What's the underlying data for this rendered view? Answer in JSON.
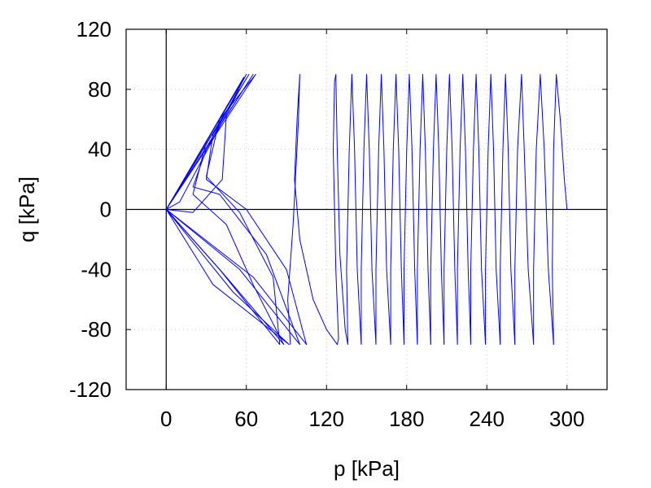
{
  "chart_data": {
    "type": "line",
    "title": "",
    "xlabel": "p [kPa]",
    "ylabel": "q [kPa]",
    "xlim": [
      -30,
      330
    ],
    "ylim": [
      -120,
      120
    ],
    "xticks": [
      0,
      60,
      120,
      180,
      240,
      300
    ],
    "yticks": [
      -120,
      -80,
      -40,
      0,
      40,
      80,
      120
    ],
    "grid": true,
    "zero_lines": true,
    "legend": "none",
    "series_color": "#0000ff",
    "series": [
      {
        "segments": [
          [
            [
              0,
              0
            ],
            [
              60,
              90
            ],
            [
              30,
              40
            ],
            [
              20,
              15
            ],
            [
              40,
              10
            ],
            [
              75,
              -30
            ],
            [
              100,
              -90
            ],
            [
              55,
              -40
            ],
            [
              0,
              0
            ]
          ],
          [
            [
              0,
              0
            ],
            [
              62,
              90
            ],
            [
              35,
              50
            ],
            [
              30,
              20
            ],
            [
              60,
              0
            ],
            [
              90,
              -40
            ],
            [
              105,
              -90
            ],
            [
              65,
              -45
            ],
            [
              0,
              0
            ]
          ],
          [
            [
              0,
              0
            ],
            [
              67,
              90
            ],
            [
              40,
              60
            ],
            [
              30,
              22
            ],
            [
              55,
              -2
            ],
            [
              80,
              -45
            ],
            [
              85,
              -90
            ],
            [
              40,
              -40
            ],
            [
              0,
              0
            ]
          ],
          [
            [
              0,
              0
            ],
            [
              65,
              90
            ],
            [
              45,
              62
            ],
            [
              42,
              20
            ],
            [
              20,
              -2
            ],
            [
              0,
              0
            ]
          ],
          [
            [
              0,
              0
            ],
            [
              58,
              88
            ],
            [
              30,
              45
            ],
            [
              20,
              10
            ],
            [
              45,
              -10
            ],
            [
              65,
              -50
            ],
            [
              88,
              -90
            ],
            [
              42,
              -42
            ],
            [
              0,
              0
            ]
          ],
          [
            [
              0,
              0
            ],
            [
              55,
              80
            ],
            [
              25,
              30
            ],
            [
              10,
              5
            ],
            [
              0,
              0
            ]
          ],
          [
            [
              0,
              0
            ],
            [
              35,
              -50
            ],
            [
              92,
              -90
            ],
            [
              50,
              -55
            ],
            [
              0,
              0
            ]
          ],
          [
            [
              93,
              -90
            ],
            [
              91,
              -60
            ],
            [
              95,
              -10
            ],
            [
              99,
              60
            ],
            [
              100,
              90
            ],
            [
              98,
              60
            ],
            [
              96,
              20
            ],
            [
              100,
              -20
            ],
            [
              110,
              -60
            ],
            [
              120,
              -80
            ],
            [
              128,
              -90
            ],
            [
              129,
              -86
            ],
            [
              127,
              -40
            ],
            [
              125,
              40
            ],
            [
              126,
              85
            ],
            [
              127,
              90
            ]
          ],
          [
            [
              127,
              90
            ],
            [
              128,
              40
            ],
            [
              130,
              -30
            ],
            [
              134,
              -80
            ],
            [
              136,
              -90
            ]
          ],
          [
            [
              136,
              -90
            ],
            [
              135,
              -40
            ],
            [
              137,
              40
            ],
            [
              139,
              90
            ],
            [
              141,
              40
            ],
            [
              143,
              -40
            ],
            [
              146,
              -90
            ]
          ],
          [
            [
              146,
              -90
            ],
            [
              146,
              -40
            ],
            [
              148,
              40
            ],
            [
              150,
              90
            ],
            [
              152,
              40
            ],
            [
              154,
              -40
            ],
            [
              157,
              -90
            ]
          ],
          [
            [
              157,
              -90
            ],
            [
              157,
              -40
            ],
            [
              159,
              40
            ],
            [
              161,
              90
            ],
            [
              163,
              40
            ],
            [
              165,
              -40
            ],
            [
              168,
              -90
            ]
          ],
          [
            [
              168,
              -90
            ],
            [
              168,
              -40
            ],
            [
              170,
              40
            ],
            [
              172,
              90
            ],
            [
              174,
              40
            ],
            [
              176,
              -40
            ],
            [
              178,
              -90
            ]
          ],
          [
            [
              178,
              -90
            ],
            [
              178,
              -40
            ],
            [
              180,
              40
            ],
            [
              182,
              90
            ],
            [
              184,
              40
            ],
            [
              186,
              -40
            ],
            [
              188,
              -90
            ]
          ],
          [
            [
              188,
              -90
            ],
            [
              188,
              -40
            ],
            [
              190,
              40
            ],
            [
              192,
              90
            ],
            [
              194,
              40
            ],
            [
              196,
              -40
            ],
            [
              198,
              -90
            ]
          ],
          [
            [
              198,
              -90
            ],
            [
              198,
              -40
            ],
            [
              200,
              40
            ],
            [
              202,
              90
            ],
            [
              204,
              40
            ],
            [
              206,
              -40
            ],
            [
              208,
              -90
            ]
          ],
          [
            [
              208,
              -90
            ],
            [
              208,
              -40
            ],
            [
              210,
              40
            ],
            [
              212,
              90
            ],
            [
              214,
              40
            ],
            [
              216,
              -40
            ],
            [
              218,
              -90
            ]
          ],
          [
            [
              218,
              -90
            ],
            [
              218,
              -40
            ],
            [
              220,
              40
            ],
            [
              222,
              90
            ],
            [
              224,
              40
            ],
            [
              226,
              -40
            ],
            [
              228,
              -90
            ]
          ],
          [
            [
              228,
              -90
            ],
            [
              228,
              -40
            ],
            [
              230,
              40
            ],
            [
              232,
              90
            ],
            [
              234,
              40
            ],
            [
              236,
              -40
            ],
            [
              239,
              -90
            ]
          ],
          [
            [
              239,
              -90
            ],
            [
              239,
              -40
            ],
            [
              241,
              40
            ],
            [
              243,
              90
            ],
            [
              245,
              40
            ],
            [
              247,
              -40
            ],
            [
              250,
              -90
            ]
          ],
          [
            [
              250,
              -90
            ],
            [
              250,
              -40
            ],
            [
              252,
              40
            ],
            [
              254,
              90
            ],
            [
              256,
              40
            ],
            [
              258,
              -40
            ],
            [
              261,
              -90
            ]
          ],
          [
            [
              261,
              -90
            ],
            [
              261,
              -40
            ],
            [
              263,
              40
            ],
            [
              266,
              90
            ],
            [
              268,
              40
            ],
            [
              271,
              -40
            ],
            [
              275,
              -90
            ]
          ],
          [
            [
              275,
              -90
            ],
            [
              275,
              -40
            ],
            [
              277,
              40
            ],
            [
              280,
              90
            ],
            [
              283,
              40
            ],
            [
              286,
              -40
            ],
            [
              290,
              -90
            ]
          ],
          [
            [
              290,
              -90
            ],
            [
              289,
              -40
            ],
            [
              290,
              40
            ],
            [
              292,
              90
            ],
            [
              295,
              60
            ],
            [
              298,
              20
            ],
            [
              300,
              0
            ]
          ]
        ]
      }
    ]
  }
}
